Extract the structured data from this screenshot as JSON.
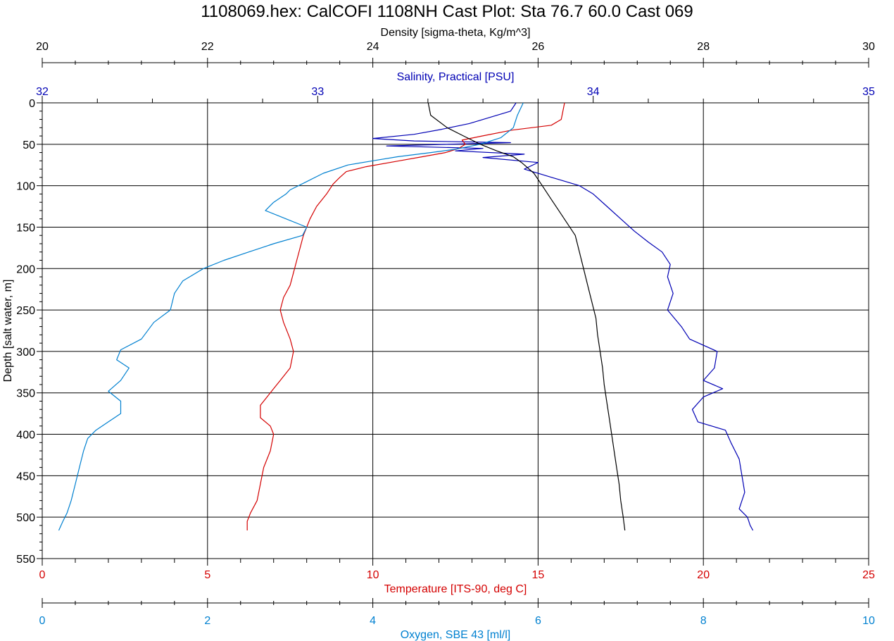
{
  "colors": {
    "salinity": "#0000b4",
    "temperature": "#d40000",
    "oxygen": "#0080d0",
    "density": "#000000",
    "grid": "#000000"
  },
  "chart_data": {
    "type": "line",
    "title": "1108069.hex: CalCOFI 1108NH Cast Plot: Sta 76.7 60.0 Cast 069",
    "grid": true,
    "y_axis": {
      "label": "Depth [salt water, m]",
      "range": [
        0,
        550
      ],
      "inverted": true,
      "ticks": [
        "0",
        "50",
        "100",
        "150",
        "200",
        "250",
        "300",
        "350",
        "400",
        "450",
        "500",
        "550"
      ]
    },
    "x_axes": [
      {
        "id": "density",
        "label": "Density [sigma-theta, Kg/m^3]",
        "position": "top",
        "range": [
          20,
          30
        ],
        "ticks": [
          "20",
          "22",
          "24",
          "26",
          "28",
          "30"
        ]
      },
      {
        "id": "salinity",
        "label": "Salinity, Practical [PSU]",
        "position": "top",
        "range": [
          32,
          35
        ],
        "ticks": [
          "32",
          "33",
          "34",
          "35"
        ]
      },
      {
        "id": "temperature",
        "label": "Temperature [ITS-90, deg C]",
        "position": "bottom",
        "range": [
          0,
          25
        ],
        "ticks": [
          "0",
          "5",
          "10",
          "15",
          "20",
          "25"
        ]
      },
      {
        "id": "oxygen",
        "label": "Oxygen, SBE 43 [ml/l]",
        "position": "bottom",
        "range": [
          0,
          10
        ],
        "ticks": [
          "0",
          "2",
          "4",
          "6",
          "8",
          "10"
        ]
      }
    ],
    "series": [
      {
        "axis": "salinity",
        "points": [
          [
            33.72,
            0
          ],
          [
            33.7,
            10
          ],
          [
            33.55,
            25
          ],
          [
            33.45,
            32
          ],
          [
            33.35,
            38
          ],
          [
            33.2,
            43
          ],
          [
            33.35,
            46
          ],
          [
            33.7,
            48
          ],
          [
            33.25,
            52
          ],
          [
            33.6,
            55
          ],
          [
            33.5,
            58
          ],
          [
            33.75,
            62
          ],
          [
            33.6,
            66
          ],
          [
            33.8,
            72
          ],
          [
            33.75,
            80
          ],
          [
            33.85,
            90
          ],
          [
            33.95,
            100
          ],
          [
            34.0,
            110
          ],
          [
            34.05,
            125
          ],
          [
            34.1,
            140
          ],
          [
            34.15,
            155
          ],
          [
            34.2,
            168
          ],
          [
            34.25,
            180
          ],
          [
            34.28,
            195
          ],
          [
            34.27,
            210
          ],
          [
            34.29,
            230
          ],
          [
            34.27,
            250
          ],
          [
            34.32,
            270
          ],
          [
            34.35,
            285
          ],
          [
            34.45,
            300
          ],
          [
            34.44,
            320
          ],
          [
            34.4,
            335
          ],
          [
            34.47,
            345
          ],
          [
            34.4,
            355
          ],
          [
            34.36,
            370
          ],
          [
            34.38,
            385
          ],
          [
            34.48,
            395
          ],
          [
            34.5,
            410
          ],
          [
            34.53,
            430
          ],
          [
            34.54,
            450
          ],
          [
            34.55,
            470
          ],
          [
            34.53,
            490
          ],
          [
            34.56,
            500
          ],
          [
            34.57,
            510
          ],
          [
            34.58,
            516
          ]
        ]
      },
      {
        "axis": "temperature",
        "points": [
          [
            15.8,
            0
          ],
          [
            15.7,
            20
          ],
          [
            15.4,
            27
          ],
          [
            14.2,
            33
          ],
          [
            13.3,
            40
          ],
          [
            12.7,
            45
          ],
          [
            12.8,
            50
          ],
          [
            12.6,
            55
          ],
          [
            12.2,
            60
          ],
          [
            11.5,
            65
          ],
          [
            10.8,
            70
          ],
          [
            9.8,
            77
          ],
          [
            9.2,
            83
          ],
          [
            9.0,
            90
          ],
          [
            8.8,
            98
          ],
          [
            8.6,
            110
          ],
          [
            8.3,
            125
          ],
          [
            8.1,
            140
          ],
          [
            8.0,
            150
          ],
          [
            7.9,
            160
          ],
          [
            7.8,
            175
          ],
          [
            7.7,
            190
          ],
          [
            7.6,
            205
          ],
          [
            7.5,
            220
          ],
          [
            7.3,
            235
          ],
          [
            7.2,
            250
          ],
          [
            7.3,
            265
          ],
          [
            7.5,
            285
          ],
          [
            7.6,
            300
          ],
          [
            7.5,
            320
          ],
          [
            7.2,
            335
          ],
          [
            7.0,
            345
          ],
          [
            6.8,
            355
          ],
          [
            6.6,
            365
          ],
          [
            6.6,
            380
          ],
          [
            6.9,
            390
          ],
          [
            7.0,
            400
          ],
          [
            6.9,
            420
          ],
          [
            6.7,
            440
          ],
          [
            6.6,
            460
          ],
          [
            6.5,
            480
          ],
          [
            6.3,
            495
          ],
          [
            6.2,
            505
          ],
          [
            6.2,
            516
          ]
        ]
      },
      {
        "axis": "oxygen",
        "points": [
          [
            5.82,
            0
          ],
          [
            5.75,
            15
          ],
          [
            5.7,
            30
          ],
          [
            5.55,
            42
          ],
          [
            5.3,
            50
          ],
          [
            5.0,
            56
          ],
          [
            4.7,
            60
          ],
          [
            4.3,
            65
          ],
          [
            4.0,
            70
          ],
          [
            3.7,
            75
          ],
          [
            3.4,
            85
          ],
          [
            3.2,
            95
          ],
          [
            3.0,
            105
          ],
          [
            2.95,
            110
          ],
          [
            2.8,
            120
          ],
          [
            2.7,
            130
          ],
          [
            2.95,
            140
          ],
          [
            3.2,
            150
          ],
          [
            3.15,
            160
          ],
          [
            2.8,
            170
          ],
          [
            2.5,
            180
          ],
          [
            2.2,
            190
          ],
          [
            1.95,
            200
          ],
          [
            1.7,
            215
          ],
          [
            1.6,
            230
          ],
          [
            1.55,
            250
          ],
          [
            1.35,
            265
          ],
          [
            1.2,
            285
          ],
          [
            0.95,
            298
          ],
          [
            0.9,
            310
          ],
          [
            1.05,
            320
          ],
          [
            0.95,
            335
          ],
          [
            0.8,
            348
          ],
          [
            0.95,
            360
          ],
          [
            0.95,
            375
          ],
          [
            0.8,
            385
          ],
          [
            0.65,
            395
          ],
          [
            0.55,
            405
          ],
          [
            0.5,
            420
          ],
          [
            0.45,
            440
          ],
          [
            0.4,
            460
          ],
          [
            0.35,
            480
          ],
          [
            0.3,
            495
          ],
          [
            0.25,
            505
          ],
          [
            0.2,
            516
          ]
        ]
      },
      {
        "axis": "density",
        "points": [
          [
            24.67,
            0
          ],
          [
            24.7,
            15
          ],
          [
            24.9,
            30
          ],
          [
            25.1,
            40
          ],
          [
            25.3,
            50
          ],
          [
            25.5,
            58
          ],
          [
            25.7,
            65
          ],
          [
            25.8,
            72
          ],
          [
            25.95,
            85
          ],
          [
            26.05,
            100
          ],
          [
            26.15,
            115
          ],
          [
            26.25,
            130
          ],
          [
            26.35,
            145
          ],
          [
            26.45,
            160
          ],
          [
            26.5,
            180
          ],
          [
            26.55,
            200
          ],
          [
            26.6,
            220
          ],
          [
            26.65,
            240
          ],
          [
            26.7,
            260
          ],
          [
            26.72,
            280
          ],
          [
            26.75,
            300
          ],
          [
            26.78,
            320
          ],
          [
            26.8,
            340
          ],
          [
            26.83,
            360
          ],
          [
            26.86,
            380
          ],
          [
            26.89,
            400
          ],
          [
            26.92,
            420
          ],
          [
            26.95,
            440
          ],
          [
            26.98,
            460
          ],
          [
            27.0,
            480
          ],
          [
            27.03,
            500
          ],
          [
            27.05,
            516
          ]
        ]
      }
    ]
  }
}
